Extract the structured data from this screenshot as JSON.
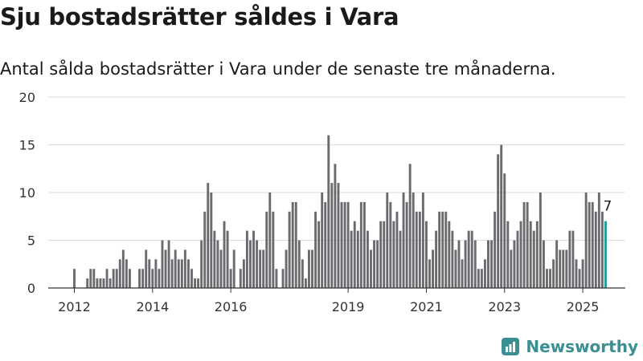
{
  "title": "Sju bostadsrätter såldes i Vara",
  "subtitle": "Antal sålda bostadsrätter i Vara under de senaste tre månaderna.",
  "brand": {
    "name": "Newsworthy",
    "icon": "bar-chart-logo-icon",
    "color": "#3a8f92"
  },
  "chart_data": {
    "type": "bar",
    "ylim": [
      0,
      20
    ],
    "yticks": [
      0,
      5,
      10,
      15,
      20
    ],
    "xticks": [
      {
        "label": "2012",
        "month": 0
      },
      {
        "label": "2014",
        "month": 24
      },
      {
        "label": "2016",
        "month": 48
      },
      {
        "label": "2019",
        "month": 84
      },
      {
        "label": "2021",
        "month": 108
      },
      {
        "label": "2023",
        "month": 132
      },
      {
        "label": "2025",
        "month": 156
      }
    ],
    "grid": true,
    "bar_color": "#6b6a6f",
    "highlight_color": "#1a9e99",
    "values": [
      2,
      0,
      0,
      0,
      1,
      2,
      2,
      1,
      1,
      1,
      2,
      1,
      2,
      2,
      3,
      4,
      3,
      2,
      0,
      0,
      2,
      2,
      4,
      3,
      2,
      3,
      2,
      5,
      4,
      5,
      3,
      4,
      3,
      3,
      4,
      3,
      2,
      1,
      1,
      5,
      8,
      11,
      10,
      6,
      5,
      4,
      7,
      6,
      2,
      4,
      0,
      2,
      3,
      6,
      5,
      6,
      5,
      4,
      4,
      8,
      10,
      8,
      2,
      0,
      2,
      4,
      8,
      9,
      9,
      5,
      3,
      1,
      4,
      4,
      8,
      7,
      10,
      9,
      16,
      11,
      13,
      11,
      9,
      9,
      9,
      6,
      7,
      6,
      9,
      9,
      6,
      4,
      5,
      5,
      7,
      7,
      10,
      9,
      7,
      8,
      6,
      10,
      9,
      13,
      10,
      8,
      8,
      10,
      7,
      3,
      4,
      6,
      8,
      8,
      8,
      7,
      6,
      4,
      5,
      3,
      5,
      6,
      6,
      5,
      2,
      2,
      3,
      5,
      5,
      8,
      14,
      15,
      12,
      7,
      4,
      5,
      6,
      7,
      9,
      9,
      7,
      6,
      7,
      10,
      5,
      2,
      2,
      3,
      5,
      4,
      4,
      4,
      6,
      6,
      3,
      2,
      3,
      10,
      9,
      9,
      8,
      10,
      8,
      7
    ],
    "highlight_label": "7"
  }
}
